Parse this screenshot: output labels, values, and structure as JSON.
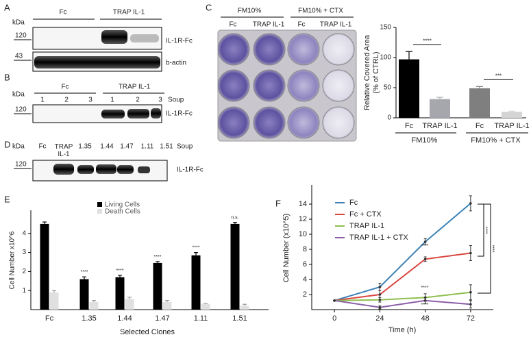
{
  "panels": {
    "A": {
      "label": "A",
      "kda": "kDa",
      "groups": [
        "Fc",
        "TRAP IL-1"
      ],
      "markers": [
        "120",
        "43"
      ],
      "bands": [
        "IL-1R-Fc",
        "b-actin"
      ]
    },
    "B": {
      "label": "B",
      "kda": "kDa",
      "groups": [
        "Fc",
        "TRAP IL-1"
      ],
      "lanes": [
        "1",
        "2",
        "3",
        "1",
        "2",
        "3"
      ],
      "soup": "Soup",
      "markers": [
        "120"
      ],
      "bands": [
        "IL-1R-Fc"
      ]
    },
    "C": {
      "label": "C",
      "groups": [
        "FM10%",
        "FM10% + CTX"
      ],
      "lanes": [
        "Fc",
        "TRAP IL-1",
        "Fc",
        "TRAP IL-1"
      ]
    },
    "D": {
      "label": "D",
      "kda": "kDa",
      "lanes": [
        "Fc",
        "TRAP IL-1",
        "1.35",
        "1.44",
        "1.47",
        "1.11",
        "1.51"
      ],
      "soup": "Soup",
      "markers": [
        "120"
      ],
      "bands": [
        "IL-1R-Fc"
      ]
    },
    "E": {
      "label": "E"
    },
    "F": {
      "label": "F"
    }
  },
  "chart_data": [
    {
      "type": "bar",
      "categories": [
        "Fc",
        "TRAP IL-1",
        "Fc",
        "TRAP IL-1"
      ],
      "groups": [
        "FM10%",
        "FM10% + CTX"
      ],
      "values": [
        97,
        31,
        49,
        10
      ],
      "errors": [
        13,
        3,
        3,
        1
      ],
      "colors": [
        "#000000",
        "#a6a6ad",
        "#7f7f7f",
        "#d4d4d4"
      ],
      "ylabel": [
        "Relative Covered Area",
        "(% of CTRL)"
      ],
      "ylim": [
        0,
        150
      ],
      "yticks": [
        0,
        50,
        100,
        150
      ],
      "significance": [
        "****",
        "***"
      ]
    },
    {
      "type": "grouped-bar",
      "categories": [
        "Fc",
        "1.35",
        "1.44",
        "1.47",
        "1.11",
        "1.51"
      ],
      "series": [
        {
          "name": "Living Cells",
          "color": "#000000",
          "values": [
            4.5,
            1.6,
            1.7,
            2.45,
            2.85,
            4.5
          ],
          "errors": [
            0.1,
            0.12,
            0.1,
            0.07,
            0.15,
            0.08
          ],
          "significance": [
            null,
            "****",
            "****",
            "****",
            "****",
            "n.s."
          ]
        },
        {
          "name": "Death Cells",
          "color": "#e0e0e0",
          "values": [
            0.9,
            0.4,
            0.55,
            0.4,
            0.3,
            0.2
          ],
          "errors": [
            0.1,
            0.08,
            0.1,
            0.08,
            0.03,
            0.08
          ]
        }
      ],
      "xlabel": "Selected Clones",
      "ylabel": "Cell Number x10^6",
      "ylim": [
        0,
        5
      ],
      "yticks": [
        1,
        2,
        3,
        4
      ]
    },
    {
      "type": "line",
      "x": [
        0,
        24,
        48,
        72
      ],
      "series": [
        {
          "name": "Fc",
          "color": "#3b82b8",
          "values": [
            1.2,
            3.0,
            9.0,
            14.1
          ],
          "errors": [
            0,
            0.5,
            0.4,
            1.0
          ]
        },
        {
          "name": "Fc + CTX",
          "color": "#d9473f",
          "values": [
            1.2,
            2.0,
            6.7,
            7.5
          ],
          "errors": [
            0,
            1.0,
            0.3,
            1.0
          ]
        },
        {
          "name": "TRAP IL-1",
          "color": "#8fbf4d",
          "values": [
            1.2,
            1.3,
            1.6,
            2.3
          ],
          "errors": [
            0,
            0.3,
            0.5,
            1.0
          ]
        },
        {
          "name": "TRAP IL-1 + CTX",
          "color": "#8a5ea8",
          "values": [
            1.2,
            0.3,
            1.2,
            0.7
          ],
          "errors": [
            0,
            0.2,
            0.4,
            0.5
          ]
        }
      ],
      "xlabel": "Time (h)",
      "ylabel": "Cell Number (x10^5)",
      "xlim": [
        -12,
        84
      ],
      "ylim": [
        0,
        16
      ],
      "xticks": [
        0,
        24,
        48,
        72
      ],
      "yticks": [
        2,
        4,
        6,
        8,
        10,
        12,
        14
      ],
      "significance": [
        "****",
        "****",
        "****",
        "****",
        "****"
      ]
    }
  ]
}
